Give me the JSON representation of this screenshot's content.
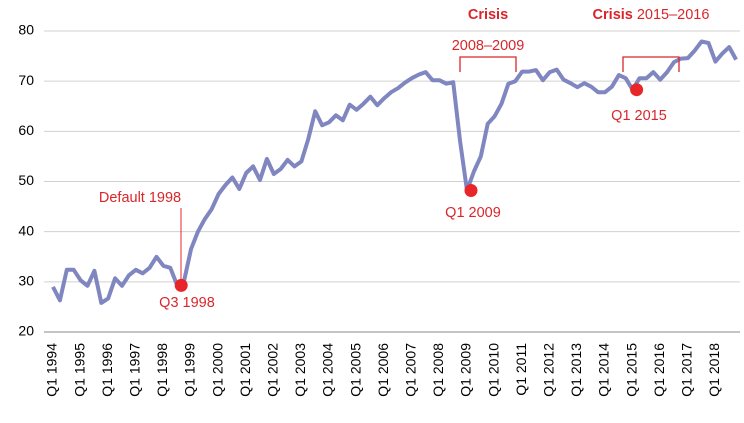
{
  "chart_data": {
    "type": "line",
    "categories": [
      "Q1 1994",
      null,
      null,
      null,
      "Q1 1995",
      null,
      null,
      null,
      "Q1 1996",
      null,
      null,
      null,
      "Q1 1997",
      null,
      null,
      null,
      "Q1 1998",
      null,
      null,
      null,
      "Q1 1999",
      null,
      null,
      null,
      "Q1 2000",
      null,
      null,
      null,
      "Q1 2001",
      null,
      null,
      null,
      "Q1 2002",
      null,
      null,
      null,
      "Q1 2003",
      null,
      null,
      null,
      "Q1 2004",
      null,
      null,
      null,
      "Q1 2005",
      null,
      null,
      null,
      "Q1 2006",
      null,
      null,
      null,
      "Q1 2007",
      null,
      null,
      null,
      "Q1 2008",
      null,
      null,
      null,
      "Q1 2009",
      null,
      null,
      null,
      "Q1 2010",
      null,
      null,
      null,
      "Q1 2011",
      null,
      null,
      null,
      "Q1 2012",
      null,
      null,
      null,
      "Q1 2013",
      null,
      null,
      null,
      "Q1 2014",
      null,
      null,
      null,
      "Q1 2015",
      null,
      null,
      null,
      "Q1 2016",
      null,
      null,
      null,
      "Q1 2017",
      null,
      null,
      null,
      "Q1 2018",
      null,
      null,
      null
    ],
    "series": [
      {
        "color": "#7f86c0",
        "values": [
          29,
          26.3,
          32.4,
          32.4,
          30.3,
          29.2,
          32.2,
          25.8,
          26.7,
          30.7,
          29.2,
          31.3,
          32.4,
          31.7,
          32.8,
          35,
          33.2,
          32.8,
          29.3,
          30.2,
          36.5,
          40,
          42.5,
          44.5,
          47.5,
          49.3,
          50.8,
          48.5,
          51.7,
          53,
          50.3,
          54.5,
          51.5,
          52.5,
          54.3,
          53,
          54,
          58.5,
          64,
          61.2,
          61.8,
          63.2,
          62.2,
          65.3,
          64.3,
          65.5,
          66.9,
          65.2,
          66.6,
          67.8,
          68.6,
          69.7,
          70.6,
          71.3,
          71.8,
          70.2,
          70.2,
          69.5,
          69.8,
          58,
          48.2,
          52,
          55,
          61.5,
          63,
          65.5,
          69.5,
          70,
          71.9,
          71.9,
          72.2,
          70.2,
          71.8,
          72.3,
          70.3,
          69.6,
          68.8,
          69.6,
          68.9,
          67.8,
          67.8,
          68.9,
          71.2,
          70.6,
          68.3,
          70.6,
          70.6,
          71.8,
          70.3,
          71.8,
          73.8,
          74.5,
          74.6,
          76.1,
          77.9,
          77.6,
          73.9,
          75.5,
          76.8,
          74.3
        ]
      }
    ],
    "marker_color": "#e8262a",
    "annotations": [
      "Default 1998",
      "Q3 1998",
      "Q1 2009",
      "Q1 2015",
      "2008–2009"
    ],
    "crisis_labels": [
      {
        "title": "Crisis"
      },
      {
        "title": "Crisis",
        "text": "2015–2016"
      }
    ],
    "ylim": [
      20,
      80
    ],
    "yticks": [
      20,
      30,
      40,
      50,
      60,
      70,
      80
    ],
    "grid": true
  }
}
